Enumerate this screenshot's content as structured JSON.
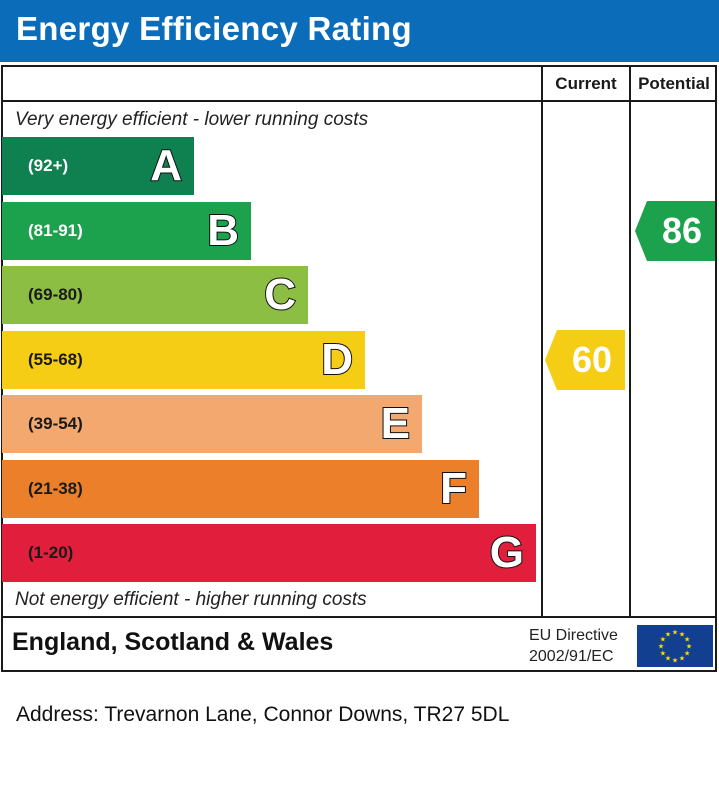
{
  "header": {
    "title": "Energy Efficiency Rating"
  },
  "columns": {
    "current": "Current",
    "potential": "Potential"
  },
  "top_note": "Very energy efficient - lower running costs",
  "bottom_note": "Not energy efficient - higher running costs",
  "chart_data": {
    "type": "bar",
    "title": "Energy Efficiency Rating",
    "bands": [
      {
        "letter": "A",
        "range": "(92+)",
        "color": "#0f8050",
        "text_color": "#ffffff"
      },
      {
        "letter": "B",
        "range": "(81-91)",
        "color": "#1ca14d",
        "text_color": "#ffffff"
      },
      {
        "letter": "C",
        "range": "(69-80)",
        "color": "#8cbe43",
        "text_color": "#1a1a1a"
      },
      {
        "letter": "D",
        "range": "(55-68)",
        "color": "#f6cd15",
        "text_color": "#1a1a1a"
      },
      {
        "letter": "E",
        "range": "(39-54)",
        "color": "#f2a86e",
        "text_color": "#1a1a1a"
      },
      {
        "letter": "F",
        "range": "(21-38)",
        "color": "#ec7f29",
        "text_color": "#1a1a1a"
      },
      {
        "letter": "G",
        "range": "(1-20)",
        "color": "#e11f3c",
        "text_color": "#1a1a1a"
      }
    ],
    "current": {
      "value": 60,
      "band": "D",
      "color": "#f6cd15"
    },
    "potential": {
      "value": 86,
      "band": "B",
      "color": "#1ca14d"
    }
  },
  "footer": {
    "region": "England, Scotland & Wales",
    "eu_line1": "EU Directive",
    "eu_line2": "2002/91/EC",
    "flag_color": "#123f8f",
    "star_color": "#ffde00"
  },
  "address": "Address: Trevarnon Lane, Connor Downs, TR27 5DL"
}
